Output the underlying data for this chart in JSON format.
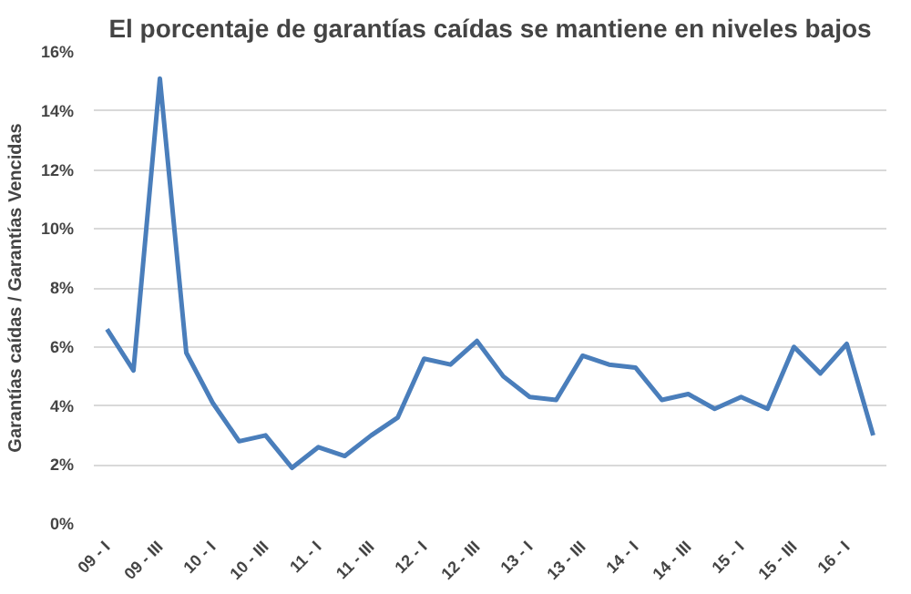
{
  "chart_data": {
    "type": "line",
    "title": "El porcentaje de garantías caídas se mantiene en niveles bajos",
    "ylabel": "Garantías caídas / Garantías Vencidas",
    "categories": [
      "09 - I",
      null,
      "09 - III",
      null,
      "10 - I",
      null,
      "10 - III",
      null,
      "11 - I",
      null,
      "11 - III",
      null,
      "12 - I",
      null,
      "12 - III",
      null,
      "13 - I",
      null,
      "13 - III",
      null,
      "14 - I",
      null,
      "14 - III",
      null,
      "15 - I",
      null,
      "15 - III",
      null,
      "16 - I",
      null
    ],
    "series": [
      {
        "color": "#4a7ebb",
        "values": [
          6.6,
          5.2,
          15.1,
          5.8,
          4.1,
          2.8,
          3.0,
          1.9,
          2.6,
          2.3,
          3.0,
          3.6,
          5.6,
          5.4,
          6.2,
          5.0,
          4.3,
          4.2,
          5.7,
          5.4,
          5.3,
          4.2,
          4.4,
          3.9,
          4.3,
          3.9,
          6.0,
          5.1,
          6.1,
          3.0
        ]
      }
    ],
    "ylim": [
      0,
      16
    ],
    "yticks": [
      {
        "value": 0,
        "label": "0%"
      },
      {
        "value": 2,
        "label": "2%"
      },
      {
        "value": 4,
        "label": "4%"
      },
      {
        "value": 6,
        "label": "6%"
      },
      {
        "value": 8,
        "label": "8%"
      },
      {
        "value": 10,
        "label": "10%"
      },
      {
        "value": 12,
        "label": "12%"
      },
      {
        "value": 14,
        "label": "14%"
      },
      {
        "value": 16,
        "label": "16%"
      }
    ],
    "grid": "y",
    "marker": "none",
    "line_style": "solid"
  }
}
